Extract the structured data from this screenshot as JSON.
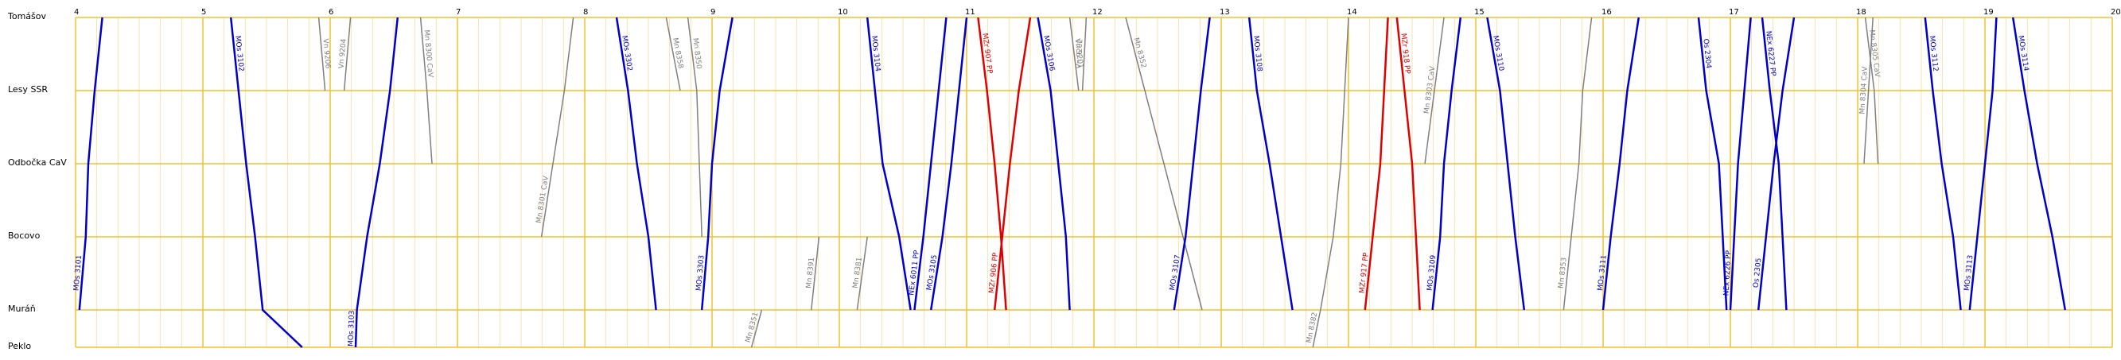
{
  "chart_data": {
    "type": "timetable",
    "stations": [
      "Tomášov",
      "Lesy SSR",
      "Odbočka CaV",
      "Bocovo",
      "Muráň",
      "Peklo"
    ],
    "xlim": [
      4,
      20
    ],
    "xticks": [
      4,
      5,
      6,
      7,
      8,
      9,
      10,
      11,
      12,
      13,
      14,
      15,
      16,
      17,
      18,
      19,
      20
    ],
    "grid": true,
    "series": [
      {
        "name": "MOs 3101",
        "color": "#0000cc",
        "x": [
          4.03,
          4.08,
          4.1,
          4.15,
          4.21
        ],
        "route": [
          "Muráň",
          "Bocovo",
          "Odbočka CaV",
          "Lesy SSR",
          "Tomášov"
        ]
      },
      {
        "name": "MOs 3102",
        "color": "#0000cc",
        "x": [
          5.22,
          5.28,
          5.34,
          5.41,
          5.47,
          5.78
        ],
        "route": [
          "Tomášov",
          "Lesy SSR",
          "Odbočka CaV",
          "Bocovo",
          "Muráň",
          "Peklo"
        ]
      },
      {
        "name": "Vn 9206",
        "color": "#808080",
        "x": [
          5.91,
          5.96
        ],
        "route": [
          "Tomášov",
          "Lesy SSR"
        ]
      },
      {
        "name": "Vn 9204",
        "color": "#808080",
        "x": [
          6.11,
          6.16
        ],
        "route": [
          "Lesy SSR",
          "Tomášov"
        ]
      },
      {
        "name": "MOs 3103",
        "color": "#0000cc",
        "x": [
          6.2,
          6.21,
          6.29,
          6.39,
          6.47,
          6.53
        ],
        "route": [
          "Peklo",
          "Muráň",
          "Bocovo",
          "Odbočka CaV",
          "Lesy SSR",
          "Tomášov"
        ]
      },
      {
        "name": "Mn 8300 CaV",
        "color": "#808080",
        "x": [
          6.71,
          6.76,
          6.8
        ],
        "route": [
          "Tomášov",
          "Lesy SSR",
          "Odbočka CaV"
        ]
      },
      {
        "name": "Mn 8301 CaV",
        "color": "#808080",
        "x": [
          7.66,
          7.75,
          7.84,
          7.91
        ],
        "route": [
          "Bocovo",
          "Odbočka CaV",
          "Lesy SSR",
          "Tomášov"
        ]
      },
      {
        "name": "MOs 3302",
        "color": "#0000cc",
        "x": [
          8.25,
          8.34,
          8.41,
          8.5,
          8.56
        ],
        "route": [
          "Tomášov",
          "Lesy SSR",
          "Odbočka CaV",
          "Bocovo",
          "Muráň"
        ]
      },
      {
        "name": "Mn 8358",
        "color": "#808080",
        "x": [
          8.64,
          8.75
        ],
        "route": [
          "Tomášov",
          "Lesy SSR"
        ]
      },
      {
        "name": "Mn 8350",
        "color": "#808080",
        "x": [
          8.81,
          8.88,
          8.9,
          8.92
        ],
        "route": [
          "Tomášov",
          "Lesy SSR",
          "Odbočka CaV",
          "Bocovo"
        ]
      },
      {
        "name": "MOs 3303",
        "color": "#0000cc",
        "x": [
          8.92,
          8.97,
          9.0,
          9.06,
          9.16
        ],
        "route": [
          "Muráň",
          "Bocovo",
          "Odbočka CaV",
          "Lesy SSR",
          "Tomášov"
        ]
      },
      {
        "name": "Mn 8351",
        "color": "#808080",
        "x": [
          9.31,
          9.39
        ],
        "route": [
          "Peklo",
          "Muráň"
        ]
      },
      {
        "name": "Mn 8391",
        "color": "#808080",
        "x": [
          9.78,
          9.84
        ],
        "route": [
          "Muráň",
          "Bocovo"
        ]
      },
      {
        "name": "Mn 8381",
        "color": "#808080",
        "x": [
          10.14,
          10.22
        ],
        "route": [
          "Muráň",
          "Bocovo"
        ]
      },
      {
        "name": "MOs 3104",
        "color": "#0000cc",
        "x": [
          10.22,
          10.28,
          10.34,
          10.47,
          10.56
        ],
        "route": [
          "Tomášov",
          "Lesy SSR",
          "Odbočka CaV",
          "Bocovo",
          "Muráň"
        ]
      },
      {
        "name": "NEx 6011 PP",
        "color": "#0000cc",
        "x": [
          10.59,
          10.66,
          10.72,
          10.78,
          10.84
        ],
        "route": [
          "Muráň",
          "Bocovo",
          "Odbočka CaV",
          "Lesy SSR",
          "Tomášov"
        ]
      },
      {
        "name": "MOs 3105",
        "color": "#0000cc",
        "x": [
          10.72,
          10.81,
          10.88,
          10.94,
          11.0
        ],
        "route": [
          "Muráň",
          "Bocovo",
          "Odbočka CaV",
          "Lesy SSR",
          "Tomášov"
        ]
      },
      {
        "name": "MZr 907 PP",
        "color": "#e00000",
        "x": [
          11.09,
          11.16,
          11.22,
          11.27,
          11.31
        ],
        "route": [
          "Tomášov",
          "Lesy SSR",
          "Odbočka CaV",
          "Bocovo",
          "Muráň"
        ]
      },
      {
        "name": "MZr 906 PP",
        "color": "#e00000",
        "x": [
          11.22,
          11.28,
          11.34,
          11.41,
          11.5
        ],
        "route": [
          "Muráň",
          "Bocovo",
          "Odbočka CaV",
          "Lesy SSR",
          "Tomášov"
        ]
      },
      {
        "name": "MOs 3106",
        "color": "#0000cc",
        "x": [
          11.56,
          11.66,
          11.72,
          11.78,
          11.81
        ],
        "route": [
          "Tomášov",
          "Lesy SSR",
          "Odbočka CaV",
          "Bocovo",
          "Muráň"
        ]
      },
      {
        "name": "Vn 9201",
        "color": "#808080",
        "x": [
          11.81,
          11.88
        ],
        "route": [
          "Tomášov",
          "Lesy SSR"
        ]
      },
      {
        "name": "Vn 9202",
        "color": "#808080",
        "x": [
          11.91,
          11.94
        ],
        "route": [
          "Lesy SSR",
          "Tomášov"
        ]
      },
      {
        "name": "Mn 8352",
        "color": "#808080",
        "x": [
          12.25,
          12.4,
          12.55,
          12.7,
          12.85
        ],
        "route": [
          "Tomášov",
          "Lesy SSR",
          "Odbočka CaV",
          "Bocovo",
          "Muráň"
        ]
      },
      {
        "name": "MOs 3107",
        "color": "#0000cc",
        "x": [
          12.63,
          12.72,
          12.78,
          12.84,
          12.91
        ],
        "route": [
          "Muráň",
          "Bocovo",
          "Odbočka CaV",
          "Lesy SSR",
          "Tomášov"
        ]
      },
      {
        "name": "MOs 3108",
        "color": "#0000cc",
        "x": [
          13.22,
          13.28,
          13.38,
          13.47,
          13.56
        ],
        "route": [
          "Tomášov",
          "Lesy SSR",
          "Odbočka CaV",
          "Bocovo",
          "Muráň"
        ]
      },
      {
        "name": "Mn 8382",
        "color": "#808080",
        "x": [
          13.72,
          13.78,
          13.88,
          13.94,
          13.97,
          14.0
        ],
        "route": [
          "Peklo",
          "Muráň",
          "Bocovo",
          "Odbočka CaV",
          "Lesy SSR",
          "Tomášov"
        ]
      },
      {
        "name": "MZr 917 PP",
        "color": "#e00000",
        "x": [
          14.13,
          14.19,
          14.25,
          14.28,
          14.31
        ],
        "route": [
          "Muráň",
          "Bocovo",
          "Odbočka CaV",
          "Lesy SSR",
          "Tomášov"
        ]
      },
      {
        "name": "MZr 918 PP",
        "color": "#e00000",
        "x": [
          14.38,
          14.44,
          14.5,
          14.53,
          14.56
        ],
        "route": [
          "Tomášov",
          "Lesy SSR",
          "Odbočka CaV",
          "Bocovo",
          "Muráň"
        ]
      },
      {
        "name": "MOs 3109",
        "color": "#0000cc",
        "x": [
          14.66,
          14.72,
          14.75,
          14.81,
          14.88
        ],
        "route": [
          "Muráň",
          "Bocovo",
          "Odbočka CaV",
          "Lesy SSR",
          "Tomášov"
        ]
      },
      {
        "name": "Mn 8303 CaV",
        "color": "#808080",
        "x": [
          14.6,
          14.75
        ],
        "route": [
          "Odbočka CaV",
          "Tomášov"
        ]
      },
      {
        "name": "MOs 3110",
        "color": "#0000cc",
        "x": [
          15.09,
          15.19,
          15.25,
          15.31,
          15.38
        ],
        "route": [
          "Tomášov",
          "Lesy SSR",
          "Odbočka CaV",
          "Bocovo",
          "Muráň"
        ]
      },
      {
        "name": "Mn 8353",
        "color": "#808080",
        "x": [
          15.69,
          15.75,
          15.81,
          15.84,
          15.91
        ],
        "route": [
          "Muráň",
          "Bocovo",
          "Odbočka CaV",
          "Lesy SSR",
          "Tomášov"
        ]
      },
      {
        "name": "MOs 3111",
        "color": "#0000cc",
        "x": [
          16.0,
          16.06,
          16.13,
          16.19,
          16.28
        ],
        "route": [
          "Muráň",
          "Bocovo",
          "Odbočka CaV",
          "Lesy SSR",
          "Tomášov"
        ]
      },
      {
        "name": "Os 2304",
        "color": "#0000cc",
        "x": [
          16.75,
          16.81,
          16.91,
          16.94,
          16.97
        ],
        "route": [
          "Tomášov",
          "Lesy SSR",
          "Odbočka CaV",
          "Bocovo",
          "Muráň"
        ]
      },
      {
        "name": "NEx 6226 PP",
        "color": "#0000cc",
        "x": [
          17.0,
          17.03,
          17.06,
          17.11,
          17.16
        ],
        "route": [
          "Muráň",
          "Bocovo",
          "Odbočka CaV",
          "Lesy SSR",
          "Tomášov"
        ]
      },
      {
        "name": "Os 2305",
        "color": "#0000cc",
        "x": [
          17.22,
          17.28,
          17.34,
          17.41,
          17.5
        ],
        "route": [
          "Muráň",
          "Bocovo",
          "Odbočka CaV",
          "Lesy SSR",
          "Tomášov"
        ]
      },
      {
        "name": "NEx 6227 PP",
        "color": "#0000cc",
        "x": [
          17.25,
          17.31,
          17.38,
          17.41,
          17.44
        ],
        "route": [
          "Tomášov",
          "Lesy SSR",
          "Odbočka CaV",
          "Bocovo",
          "Muráň"
        ]
      },
      {
        "name": "Mn 8305 CaV",
        "color": "#808080",
        "x": [
          18.06,
          18.13,
          18.16
        ],
        "route": [
          "Tomášov",
          "Lesy SSR",
          "Odbočka CaV"
        ]
      },
      {
        "name": "Mn 8304 CaV",
        "color": "#808080",
        "x": [
          18.05,
          18.12
        ],
        "route": [
          "Odbočka CaV",
          "Tomášov"
        ]
      },
      {
        "name": "MOs 3112",
        "color": "#0000cc",
        "x": [
          18.53,
          18.59,
          18.66,
          18.75,
          18.81
        ],
        "route": [
          "Tomášov",
          "Lesy SSR",
          "Odbočka CaV",
          "Bocovo",
          "Muráň"
        ]
      },
      {
        "name": "MOs 3113",
        "color": "#0000cc",
        "x": [
          18.88,
          18.94,
          19.0,
          19.06,
          19.09
        ],
        "route": [
          "Muráň",
          "Bocovo",
          "Odbočka CaV",
          "Lesy SSR",
          "Tomášov"
        ]
      },
      {
        "name": "MOs 3114",
        "color": "#0000cc",
        "x": [
          19.22,
          19.31,
          19.41,
          19.53,
          19.63
        ],
        "route": [
          "Tomášov",
          "Lesy SSR",
          "Odbočka CaV",
          "Bocovo",
          "Muráň"
        ]
      }
    ]
  }
}
